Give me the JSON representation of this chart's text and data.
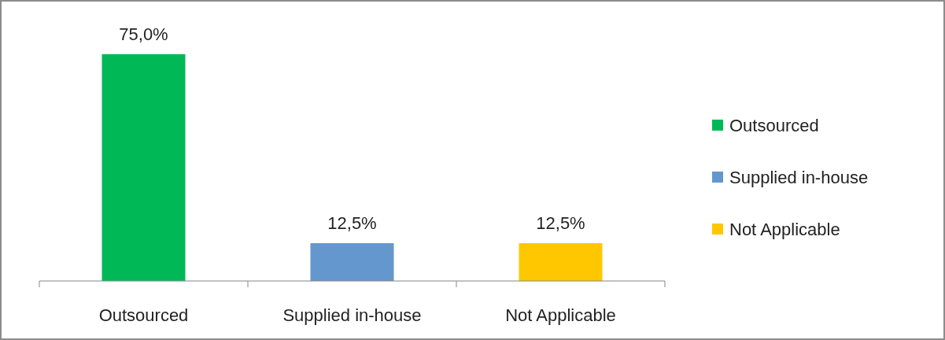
{
  "chart_data": {
    "type": "bar",
    "categories": [
      "Outsourced",
      "Supplied in-house",
      "Not Applicable"
    ],
    "stacked": true,
    "series": [
      {
        "name": "Outsourced",
        "color": "#00b956",
        "values": [
          75,
          null,
          null
        ],
        "value_labels": [
          "75,0%",
          null,
          null
        ]
      },
      {
        "name": "Supplied in-house",
        "color": "#6497cd",
        "values": [
          null,
          12.5,
          null
        ],
        "value_labels": [
          null,
          "12,5%",
          null
        ]
      },
      {
        "name": "Not Applicable",
        "color": "#ffc700",
        "values": [
          null,
          null,
          12.5
        ],
        "value_labels": [
          null,
          null,
          "12,5%"
        ]
      }
    ],
    "legend": "right"
  }
}
